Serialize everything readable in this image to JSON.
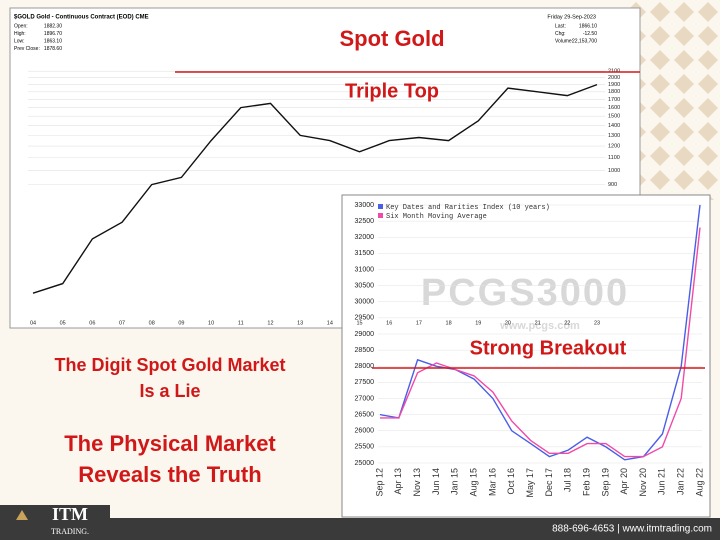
{
  "slide": {
    "headline": "Spot Gold",
    "pattern": "Triple Top",
    "breakout": "Strong Breakout",
    "claim": [
      "The Digit Spot Gold Market",
      "Is a Lie"
    ],
    "truth": [
      "The Physical Market",
      "Reveals the Truth"
    ],
    "logo": "ITM",
    "logo_sub": "TRADING.",
    "contact": "888-696-4653 | www.itmtrading.com",
    "quote_header": "$GOLD Gold - Continuous Contract (EOD) CME",
    "quote_date": "Friday 29-Sep-2023",
    "quote_fields": [
      [
        "Open:",
        "1882.30"
      ],
      [
        "High:",
        "1896.70"
      ],
      [
        "Low:",
        "1863.10"
      ],
      [
        "Prev Close:",
        "1878.60"
      ],
      [
        "Last:",
        "1866.10"
      ],
      [
        "Chg:",
        "-12.50"
      ],
      [
        "Volume:",
        "22,153,700"
      ]
    ],
    "watermark": "PCGS3000",
    "watermark_url": "www.pcgs.com"
  },
  "chart_data": [
    {
      "type": "line",
      "categories": [
        "04",
        "05",
        "06",
        "07",
        "08",
        "09",
        "10",
        "11",
        "12",
        "13",
        "14",
        "15",
        "16",
        "17",
        "18",
        "19",
        "20",
        "21",
        "22",
        "23"
      ],
      "values": [
        400,
        430,
        600,
        680,
        900,
        950,
        1250,
        1600,
        1650,
        1300,
        1250,
        1150,
        1250,
        1280,
        1250,
        1450,
        1850,
        1800,
        1750,
        1900
      ],
      "color": "#111111",
      "log_scale": true,
      "ylim": [
        330,
        2150
      ],
      "yticks": [
        900,
        1000,
        1100,
        1200,
        1300,
        1400,
        1500,
        1600,
        1700,
        1800,
        1900,
        2000,
        2100
      ],
      "grid": true
    },
    {
      "type": "line",
      "categories": [
        "Sep 12",
        "Apr 13",
        "Nov 13",
        "Jun 14",
        "Jan 15",
        "Aug 15",
        "Mar 16",
        "Oct 16",
        "May 17",
        "Dec 17",
        "Jul 18",
        "Feb 19",
        "Sep 19",
        "Apr 20",
        "Nov 20",
        "Jun 21",
        "Jan 22",
        "Aug 22"
      ],
      "series": [
        {
          "name": "Key Dates and Rarities Index (10 years)",
          "color": "#4a5ee8",
          "values": [
            26500,
            26400,
            28200,
            28000,
            27900,
            27600,
            27000,
            26000,
            25600,
            25200,
            25400,
            25800,
            25500,
            25100,
            25200,
            25900,
            28000,
            33000
          ]
        },
        {
          "name": "Six Month Moving Average",
          "color": "#f04aa8",
          "values": [
            26400,
            26400,
            27800,
            28100,
            27900,
            27700,
            27200,
            26300,
            25700,
            25300,
            25300,
            25600,
            25600,
            25200,
            25200,
            25500,
            27000,
            32300
          ]
        }
      ],
      "log_scale": false,
      "ylim": [
        25000,
        33000
      ],
      "yticks": [
        25000,
        25500,
        26000,
        26500,
        27000,
        27500,
        28000,
        28500,
        29000,
        29500,
        30000,
        30500,
        31000,
        31500,
        32000,
        32500,
        33000
      ],
      "grid": true,
      "legend": "top-left"
    }
  ]
}
